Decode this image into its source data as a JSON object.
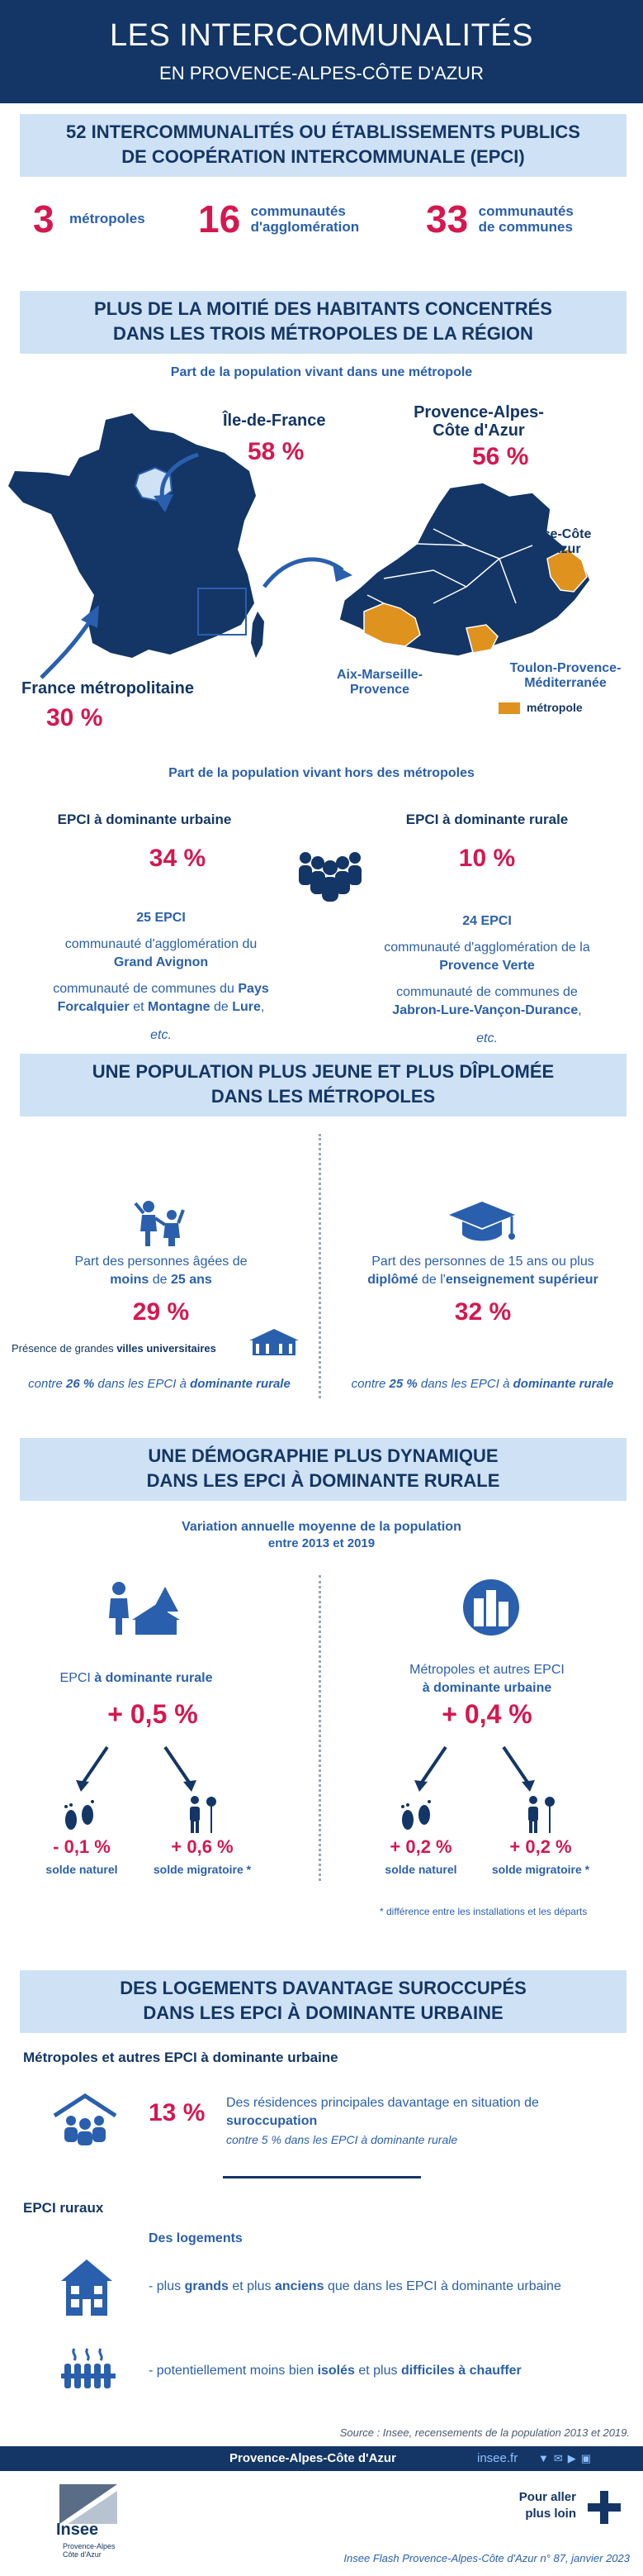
{
  "header": {
    "title": "LES INTERCOMMUNALITÉS",
    "subtitle": "EN PROVENCE-ALPES-CÔTE D'AZUR"
  },
  "section1": {
    "banner_line1": "52 INTERCOMMUNALITÉS OU ÉTABLISSEMENTS PUBLICS",
    "banner_line2": "DE COOPÉRATION INTERCOMMUNALE (EPCI)",
    "stats": [
      {
        "value": "3",
        "label1": "métropoles",
        "label2": ""
      },
      {
        "value": "16",
        "label1": "communautés",
        "label2": "d'agglomération"
      },
      {
        "value": "33",
        "label1": "communautés",
        "label2": "de communes"
      }
    ]
  },
  "section2": {
    "banner_line1": "PLUS DE LA MOITIÉ DES HABITANTS CONCENTRÉS",
    "banner_line2": "DANS LES TROIS MÉTROPOLES DE LA RÉGION",
    "subtitle": "Part de la population vivant dans une métropole",
    "idf_label": "Île-de-France",
    "idf_value": "58 %",
    "france_label": "France métropolitaine",
    "france_value": "30 %",
    "paca_label1": "Provence-Alpes-",
    "paca_label2": "Côte d'Azur",
    "paca_value": "56 %",
    "nice_label1": "Nice-Côte",
    "nice_label2": "d'Azur",
    "aix_label1": "Aix-Marseille-",
    "aix_label2": "Provence",
    "toulon_label1": "Toulon-Provence-",
    "toulon_label2": "Méditerranée",
    "legend": "métropole",
    "colors": {
      "navy": "#143666",
      "orange": "#e0921e",
      "light": "#cfe2f5"
    }
  },
  "section3": {
    "subtitle": "Part de la population vivant hors des métropoles",
    "urban": {
      "title": "EPCI à dominante urbaine",
      "value": "34 %",
      "ex_label": "25 EPCI",
      "ex1": "communauté d'agglomération du",
      "ex1b": "Grand Avignon",
      "ex2a": "communauté de communes du ",
      "ex2b": "Pays",
      "ex2c": "Forcalquier",
      "ex2d": " et ",
      "ex2e": "Montagne",
      "ex2f": " de ",
      "ex2g": "Lure",
      "etc": "etc."
    },
    "rural": {
      "title": "EPCI à dominante rurale",
      "value": "10 %",
      "ex_label": "24 EPCI",
      "ex1": "communauté d'agglomération de la",
      "ex1b": "Provence Verte",
      "ex2a": "communauté de communes de",
      "ex2b": "Jabron-Lure-Vançon-Durance",
      "etc": "etc."
    }
  },
  "section4": {
    "banner_line1": "UNE POPULATION PLUS JEUNE ET PLUS DÎPLOMÉE",
    "banner_line2": "DANS LES MÉTROPOLES",
    "left": {
      "line1": "Part des personnes âgées de",
      "line2a": "moins",
      "line2b": " de ",
      "line2c": "25 ans",
      "value": "29 %",
      "note_a": "Présence de grandes ",
      "note_b": "villes universitaires",
      "compare_a": "contre ",
      "compare_b": "26 %",
      "compare_c": " dans les EPCI à ",
      "compare_d": "dominante rurale"
    },
    "right": {
      "line1": "Part des personnes de 15 ans ou plus",
      "line2a": "diplômé",
      "line2b": " de l'",
      "line2c": "enseignement supérieur",
      "value": "32 %",
      "compare_a": "contre ",
      "compare_b": "25 %",
      "compare_c": " dans les EPCI à ",
      "compare_d": "dominante rurale"
    }
  },
  "section5": {
    "banner_line1": "UNE DÉMOGRAPHIE PLUS DYNAMIQUE",
    "banner_line2": "DANS LES EPCI À DOMINANTE RURALE",
    "subtitle1": "Variation annuelle moyenne de la population",
    "subtitle2": "entre 2013 et 2019",
    "left": {
      "title_a": "EPCI ",
      "title_b": "à dominante rurale",
      "value": "+ 0,5 %",
      "natural": "- 0,1 %",
      "natural_label": "solde naturel",
      "migr": "+ 0,6 %",
      "migr_label": "solde migratoire *"
    },
    "right": {
      "title1": "Métropoles et autres EPCI",
      "title2": "à dominante urbaine",
      "value": "+ 0,4 %",
      "natural": "+ 0,2 %",
      "natural_label": "solde naturel",
      "migr": "+ 0,2 %",
      "migr_label": "solde migratoire *"
    },
    "footnote": "* différence entre les installations et les départs"
  },
  "section6": {
    "banner_line1": "DES LOGEMENTS DAVANTAGE SUROCCUPÉS",
    "banner_line2": "DANS LES EPCI À DOMINANTE URBAINE",
    "urban_title": "Métropoles et autres EPCI à dominante urbaine",
    "urban_value": "13 %",
    "urban_text1": "Des résidences principales davantage en situation de",
    "urban_text2": "suroccupation",
    "urban_text3": "contre 5 % dans les EPCI à dominante rurale",
    "rural_title": "EPCI ruraux",
    "rural_sub": "Des logements",
    "rural_item1a": "- plus ",
    "rural_item1b": "grands",
    "rural_item1c": " et plus ",
    "rural_item1d": "anciens",
    "rural_item1e": " que dans les EPCI à dominante urbaine",
    "rural_item2a": "- potentiellement moins bien ",
    "rural_item2b": "isolés",
    "rural_item2c": " et plus ",
    "rural_item2d": "difficiles à chauffer"
  },
  "footer": {
    "source": "Source : Insee, recensements de la population 2013 et 2019.",
    "region": "Provence-Alpes-Côte d'Azur",
    "site": "insee.fr",
    "logo": "Insee",
    "logo_sub1": "Provence-Alpes",
    "logo_sub2": "Côte d'Azur",
    "more1": "Pour aller",
    "more2": "plus loin",
    "ref": "Insee Flash Provence-Alpes-Côte d'Azur n° 87, janvier 2023"
  }
}
